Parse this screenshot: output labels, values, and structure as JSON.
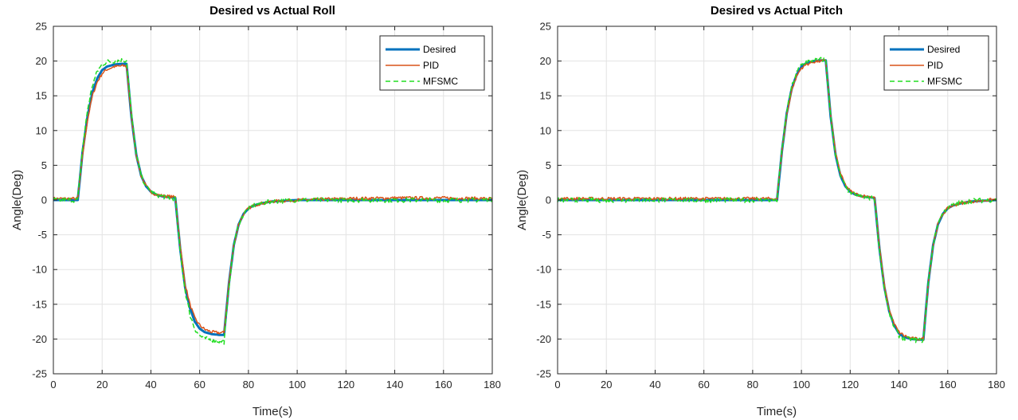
{
  "chart_data": [
    {
      "type": "line",
      "title": "Desired vs Actual Roll",
      "xlabel": "Time(s)",
      "ylabel": "Angle(Deg)",
      "xlim": [
        0,
        180
      ],
      "ylim": [
        -25,
        25
      ],
      "xticks": [
        0,
        20,
        40,
        60,
        80,
        100,
        120,
        140,
        160,
        180
      ],
      "yticks": [
        -25,
        -20,
        -15,
        -10,
        -5,
        0,
        5,
        10,
        15,
        20,
        25
      ],
      "grid": true,
      "legend_position": "top-right",
      "series": [
        {
          "name": "Desired",
          "color": "#0072BD",
          "style": "solid-thick",
          "x": [
            0,
            10,
            12,
            14,
            16,
            18,
            20,
            22,
            25,
            28,
            30,
            32,
            34,
            36,
            38,
            40,
            42,
            45,
            48,
            50,
            52,
            54,
            56,
            58,
            60,
            62,
            65,
            68,
            70,
            72,
            74,
            76,
            78,
            80,
            82,
            85,
            88,
            90,
            100,
            120,
            140,
            160,
            180
          ],
          "y": [
            0,
            0,
            7,
            12,
            15.5,
            17.5,
            18.7,
            19.2,
            19.5,
            19.6,
            19.6,
            12,
            6.5,
            3.5,
            2,
            1.2,
            0.8,
            0.5,
            0.4,
            0.3,
            -7,
            -12.5,
            -15.5,
            -17.5,
            -18.5,
            -19,
            -19.3,
            -19.4,
            -19.4,
            -12,
            -6.5,
            -3.5,
            -2,
            -1.2,
            -0.8,
            -0.5,
            -0.3,
            -0.2,
            0,
            0,
            0,
            0,
            0
          ]
        },
        {
          "name": "PID",
          "color": "#D95319",
          "style": "solid",
          "x": [
            0,
            10,
            12,
            14,
            16,
            18,
            20,
            22,
            25,
            28,
            30,
            32,
            34,
            36,
            38,
            40,
            42,
            45,
            48,
            50,
            52,
            54,
            56,
            58,
            60,
            62,
            65,
            68,
            70,
            72,
            74,
            76,
            78,
            80,
            82,
            85,
            88,
            90,
            100,
            120,
            140,
            160,
            180
          ],
          "y": [
            0.2,
            0.2,
            6.5,
            11.5,
            15,
            17,
            18.2,
            18.8,
            19.2,
            19.3,
            19.3,
            12,
            6.5,
            3.5,
            2,
            1.2,
            0.8,
            0.6,
            0.5,
            0.4,
            -6.5,
            -12,
            -15,
            -17,
            -18,
            -18.6,
            -19,
            -19.1,
            -19.1,
            -12,
            -6.5,
            -3.5,
            -2,
            -1.2,
            -0.8,
            -0.5,
            -0.3,
            -0.2,
            0,
            0.2,
            0.3,
            0.3,
            0.2
          ]
        },
        {
          "name": "MFSMC",
          "color": "#22DD22",
          "style": "dashed",
          "x": [
            0,
            10,
            12,
            14,
            16,
            18,
            20,
            22,
            25,
            28,
            30,
            32,
            34,
            36,
            38,
            40,
            42,
            45,
            48,
            50,
            52,
            54,
            56,
            58,
            60,
            62,
            65,
            68,
            70,
            72,
            74,
            76,
            78,
            80,
            82,
            85,
            88,
            90,
            100,
            120,
            140,
            160,
            180
          ],
          "y": [
            0,
            0,
            7.5,
            13,
            16.5,
            18.5,
            19.5,
            19.9,
            20,
            20.1,
            20.1,
            12.5,
            6.5,
            3.5,
            2,
            1.2,
            0.8,
            0.5,
            0.3,
            0.2,
            -7.5,
            -13,
            -16.5,
            -18.5,
            -19.5,
            -19.9,
            -20.1,
            -20.3,
            -20.4,
            -12.5,
            -6.5,
            -3.5,
            -2,
            -1.2,
            -0.8,
            -0.5,
            -0.3,
            -0.2,
            0,
            0,
            0,
            0,
            0
          ]
        }
      ]
    },
    {
      "type": "line",
      "title": "Desired vs Actual Pitch",
      "xlabel": "Time(s)",
      "ylabel": "Angle(Deg)",
      "xlim": [
        0,
        180
      ],
      "ylim": [
        -25,
        25
      ],
      "xticks": [
        0,
        20,
        40,
        60,
        80,
        100,
        120,
        140,
        160,
        180
      ],
      "yticks": [
        -25,
        -20,
        -15,
        -10,
        -5,
        0,
        5,
        10,
        15,
        20,
        25
      ],
      "grid": true,
      "legend_position": "top-right",
      "series": [
        {
          "name": "Desired",
          "color": "#0072BD",
          "style": "solid-thick",
          "x": [
            0,
            90,
            92,
            94,
            96,
            98,
            100,
            102,
            105,
            108,
            110,
            112,
            114,
            116,
            118,
            120,
            122,
            125,
            128,
            130,
            132,
            134,
            136,
            138,
            140,
            142,
            145,
            148,
            150,
            152,
            154,
            156,
            158,
            160,
            162,
            165,
            168,
            170,
            180
          ],
          "y": [
            0,
            0,
            7,
            12.5,
            16,
            18,
            19.2,
            19.7,
            20,
            20.1,
            20.1,
            12,
            6.5,
            3.5,
            2,
            1.2,
            0.8,
            0.5,
            0.4,
            0.3,
            -7,
            -12.5,
            -16,
            -18,
            -19.2,
            -19.7,
            -20,
            -20.1,
            -20.1,
            -12,
            -6.5,
            -3.5,
            -2,
            -1.2,
            -0.8,
            -0.5,
            -0.3,
            -0.2,
            0
          ]
        },
        {
          "name": "PID",
          "color": "#D95319",
          "style": "solid",
          "x": [
            0,
            90,
            92,
            94,
            96,
            98,
            100,
            102,
            105,
            108,
            110,
            112,
            114,
            116,
            118,
            120,
            122,
            125,
            128,
            130,
            132,
            134,
            136,
            138,
            140,
            142,
            145,
            148,
            150,
            152,
            154,
            156,
            158,
            160,
            162,
            165,
            168,
            170,
            180
          ],
          "y": [
            0.2,
            0.2,
            7,
            12.3,
            15.8,
            17.8,
            19,
            19.5,
            19.9,
            20,
            20,
            12.2,
            6.8,
            3.8,
            2.2,
            1.3,
            0.9,
            0.6,
            0.5,
            0.4,
            -6.8,
            -12.2,
            -15.8,
            -17.8,
            -19,
            -19.5,
            -19.9,
            -20,
            -20,
            -12,
            -6.5,
            -3.5,
            -2,
            -1.2,
            -0.8,
            -0.5,
            -0.3,
            -0.2,
            0.1
          ]
        },
        {
          "name": "MFSMC",
          "color": "#22DD22",
          "style": "dashed",
          "x": [
            0,
            90,
            92,
            94,
            96,
            98,
            100,
            102,
            105,
            108,
            110,
            112,
            114,
            116,
            118,
            120,
            122,
            125,
            128,
            130,
            132,
            134,
            136,
            138,
            140,
            142,
            145,
            148,
            150,
            152,
            154,
            156,
            158,
            160,
            162,
            165,
            168,
            170,
            180
          ],
          "y": [
            0,
            0,
            7.2,
            12.8,
            16.3,
            18.3,
            19.5,
            19.9,
            20.1,
            20.2,
            20.2,
            12,
            6.4,
            3.4,
            1.9,
            1.1,
            0.7,
            0.4,
            0.3,
            0.2,
            -7.2,
            -12.8,
            -16.3,
            -18.3,
            -19.5,
            -19.9,
            -20.1,
            -20.2,
            -20.2,
            -12,
            -6.4,
            -3.4,
            -1.9,
            -1.1,
            -0.7,
            -0.4,
            -0.2,
            -0.1,
            0
          ]
        }
      ]
    }
  ]
}
